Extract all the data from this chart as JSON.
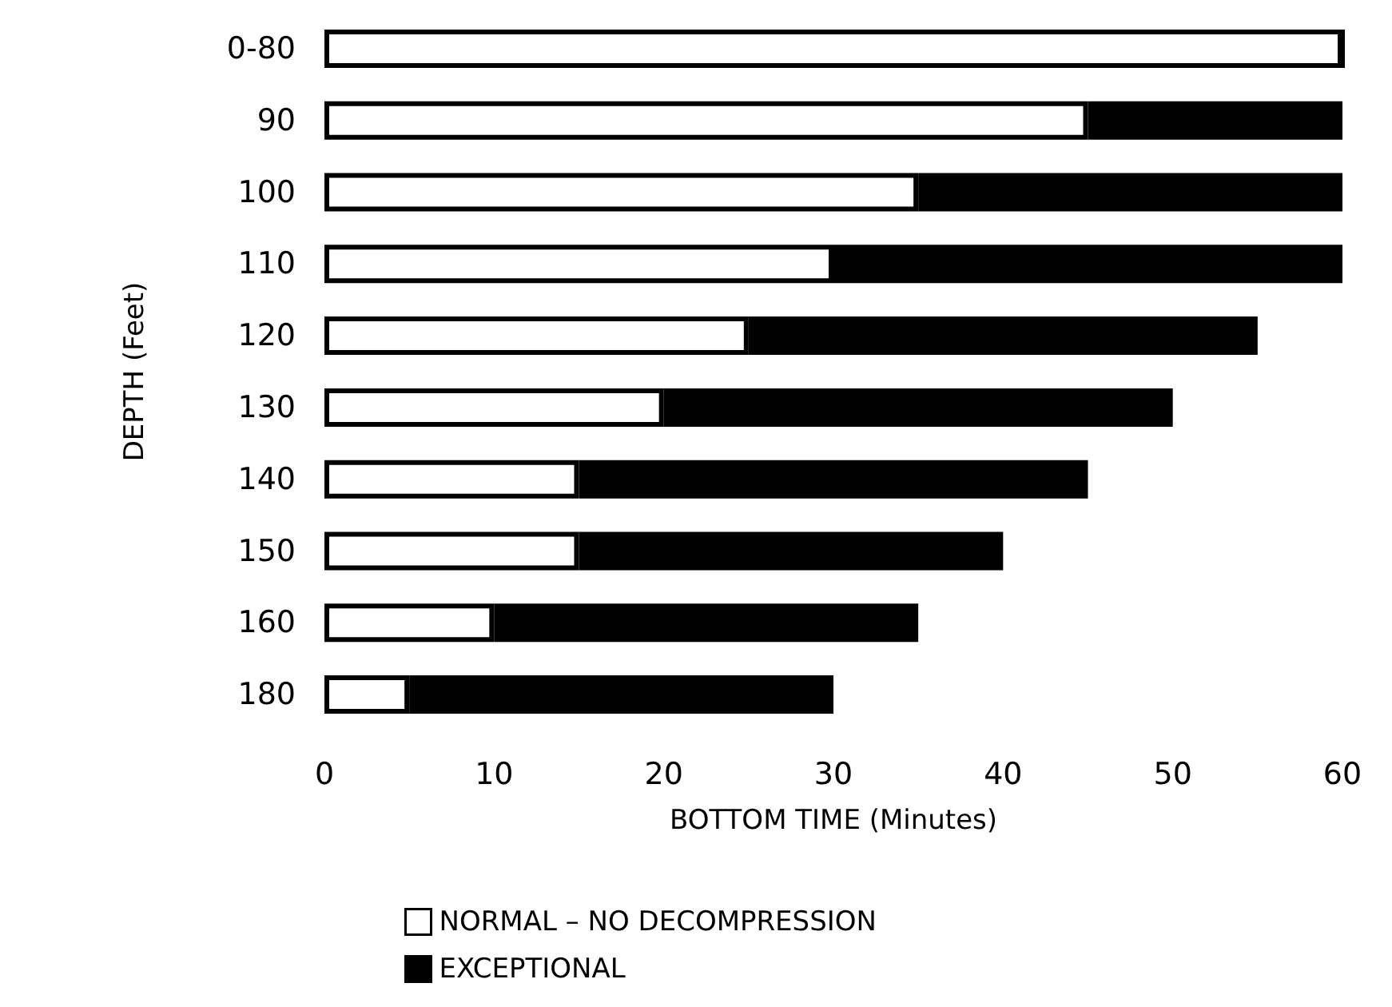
{
  "chart_data": {
    "type": "bar",
    "orientation": "horizontal",
    "stacked": true,
    "categories": [
      "0-80",
      "90",
      "100",
      "110",
      "120",
      "130",
      "140",
      "150",
      "160",
      "180"
    ],
    "xlabel": "BOTTOM TIME (Minutes)",
    "ylabel": "DEPTH (Feet)",
    "series": [
      {
        "name": "NORMAL – NO DECOMPRESSION",
        "color": "#ffffff",
        "values": [
          60,
          45,
          35,
          30,
          25,
          20,
          15,
          15,
          10,
          5
        ]
      },
      {
        "name": "EXCEPTIONAL",
        "color": "#000000",
        "values": [
          0,
          15,
          25,
          30,
          30,
          30,
          30,
          25,
          25,
          25
        ]
      }
    ],
    "xlim": [
      0,
      60
    ],
    "xticks": [
      0,
      10,
      20,
      30,
      40,
      50,
      60
    ],
    "grid": false,
    "legend": "bottom"
  }
}
